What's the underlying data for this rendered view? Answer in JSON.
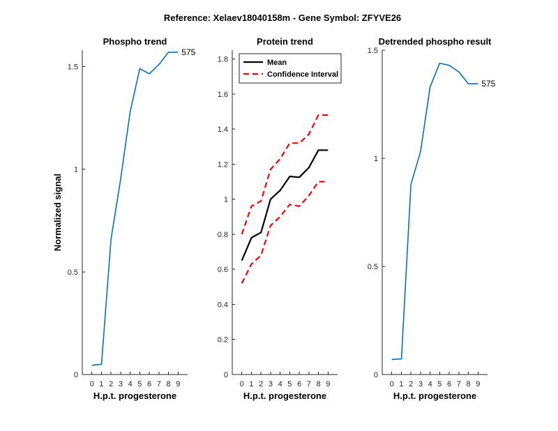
{
  "figure": {
    "suptitle": "Reference:  Xelaev18040158m - Gene Symbol:  ZFYVE26"
  },
  "chart_data": [
    {
      "type": "line",
      "title": "Phospho trend",
      "xlabel": "H.p.t. progesterone",
      "ylabel": "Normalized signal",
      "xlim": [
        -1,
        10
      ],
      "ylim": [
        0,
        1.58
      ],
      "xticks": [
        0,
        1,
        2,
        3,
        4,
        5,
        6,
        7,
        8,
        9
      ],
      "yticks": [
        0,
        0.5,
        1,
        1.5
      ],
      "ytick_labels": [
        "0",
        "0.5",
        "1",
        "1.5"
      ],
      "series": [
        {
          "color": "#0072BD",
          "style": "solid",
          "x": [
            0,
            1,
            2,
            3,
            4,
            5,
            6,
            7,
            8,
            9
          ],
          "y": [
            0.045,
            0.05,
            0.66,
            0.95,
            1.28,
            1.49,
            1.465,
            1.51,
            1.57,
            1.57
          ],
          "end_label": "575"
        }
      ]
    },
    {
      "type": "line",
      "title": "Protein trend",
      "xlabel": "H.p.t. progesterone",
      "ylabel": "",
      "xlim": [
        -1,
        10
      ],
      "ylim": [
        0,
        1.85
      ],
      "xticks": [
        0,
        1,
        2,
        3,
        4,
        5,
        6,
        7,
        8,
        9
      ],
      "yticks": [
        0,
        0.2,
        0.4,
        0.6,
        0.8,
        1,
        1.2,
        1.4,
        1.6,
        1.8
      ],
      "ytick_labels": [
        "0",
        "0.2",
        "0.4",
        "0.6",
        "0.8",
        "1",
        "1.2",
        "1.4",
        "1.6",
        "1.8"
      ],
      "legend": {
        "location": "top-left"
      },
      "series": [
        {
          "name": "Mean",
          "color": "#000000",
          "style": "solid",
          "x": [
            0,
            1,
            2,
            3,
            4,
            5,
            6,
            7,
            8,
            9
          ],
          "y": [
            0.65,
            0.78,
            0.81,
            1.0,
            1.05,
            1.13,
            1.125,
            1.18,
            1.28,
            1.28
          ]
        },
        {
          "name": "Confidence Interval",
          "color": "#FF0000",
          "style": "dashed",
          "x": [
            0,
            1,
            2,
            3,
            4,
            5,
            6,
            7,
            8,
            9
          ],
          "y": [
            0.8,
            0.96,
            0.99,
            1.17,
            1.23,
            1.32,
            1.32,
            1.37,
            1.48,
            1.48
          ]
        },
        {
          "name": "",
          "color": "#FF0000",
          "style": "dashed",
          "x": [
            0,
            1,
            2,
            3,
            4,
            5,
            6,
            7,
            8,
            9
          ],
          "y": [
            0.52,
            0.63,
            0.68,
            0.85,
            0.9,
            0.97,
            0.96,
            1.02,
            1.1,
            1.1
          ]
        }
      ]
    },
    {
      "type": "line",
      "title": "Detrended phospho result",
      "xlabel": "H.p.t. progesterone",
      "ylabel": "",
      "xlim": [
        -1,
        10
      ],
      "ylim": [
        0,
        1.5
      ],
      "xticks": [
        0,
        1,
        2,
        3,
        4,
        5,
        6,
        7,
        8,
        9
      ],
      "yticks": [
        0,
        0.5,
        1,
        1.5
      ],
      "ytick_labels": [
        "0",
        "0.5",
        "1",
        "1.5"
      ],
      "series": [
        {
          "color": "#0072BD",
          "style": "solid",
          "x": [
            0,
            1,
            2,
            3,
            4,
            5,
            6,
            7,
            8,
            9
          ],
          "y": [
            0.07,
            0.072,
            0.88,
            1.03,
            1.33,
            1.44,
            1.43,
            1.4,
            1.345,
            1.345
          ],
          "end_label": "575"
        }
      ]
    }
  ]
}
